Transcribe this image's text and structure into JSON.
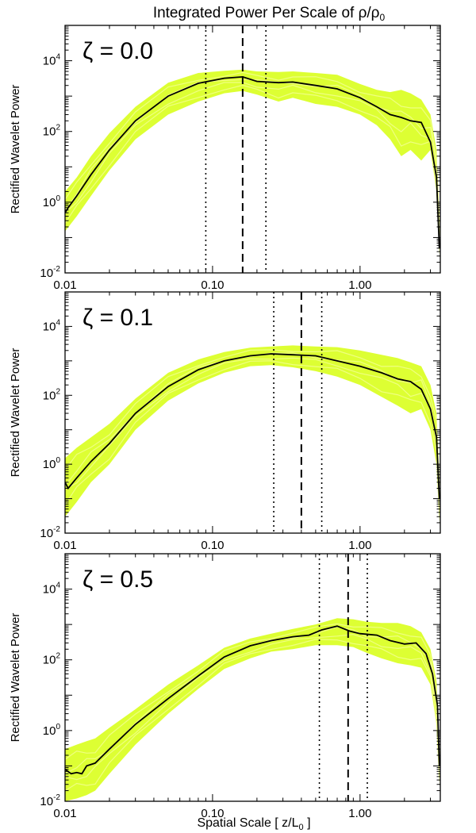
{
  "title_parts": {
    "main": "Integrated Power Per Scale of ",
    "rho": "ρ",
    "slash": "/",
    "rho0": "ρ",
    "sub0": "0"
  },
  "xlabel_parts": {
    "main": "Spatial Scale   [ z/L",
    "sub": "0",
    "end": " ]"
  },
  "ylabel": "Rectified Wavelet Power",
  "colors": {
    "envelope": "#ddff33",
    "mean": "#000000",
    "axis": "#000000"
  },
  "chart_data": [
    {
      "type": "line",
      "annotation": "ζ = 0.0",
      "xscale": "log",
      "yscale": "log",
      "xlim": [
        0.01,
        3.5
      ],
      "ylim": [
        0.01,
        100000
      ],
      "xticks": [
        {
          "v": 0.01,
          "label": "0.01"
        },
        {
          "v": 0.1,
          "label": "0.10"
        },
        {
          "v": 1.0,
          "label": "1.00"
        }
      ],
      "yticks": [
        {
          "v": 0.01,
          "base": "10",
          "exp": "-2"
        },
        {
          "v": 1,
          "base": "10",
          "exp": "0"
        },
        {
          "v": 100,
          "base": "10",
          "exp": "2"
        },
        {
          "v": 10000,
          "base": "10",
          "exp": "4"
        }
      ],
      "vlines": [
        {
          "x": 0.09,
          "style": "dotted"
        },
        {
          "x": 0.16,
          "style": "dashed"
        },
        {
          "x": 0.23,
          "style": "dotted"
        }
      ],
      "mean": {
        "x": [
          0.01,
          0.0105,
          0.012,
          0.015,
          0.02,
          0.03,
          0.05,
          0.08,
          0.12,
          0.16,
          0.2,
          0.28,
          0.35,
          0.5,
          0.7,
          1.0,
          1.3,
          1.6,
          1.9,
          2.2,
          2.6,
          3.0,
          3.3,
          3.45
        ],
        "y": [
          0.5,
          0.7,
          1.5,
          6,
          30,
          200,
          1000,
          2300,
          3200,
          3500,
          2600,
          2400,
          2500,
          2000,
          1600,
          900,
          500,
          300,
          250,
          200,
          180,
          50,
          5,
          0.05
        ]
      },
      "envelope": {
        "x": [
          0.01,
          0.012,
          0.015,
          0.02,
          0.03,
          0.05,
          0.08,
          0.12,
          0.16,
          0.2,
          0.28,
          0.35,
          0.5,
          0.7,
          1.0,
          1.3,
          1.6,
          1.9,
          2.2,
          2.6,
          3.0,
          3.3,
          3.45
        ],
        "lower": [
          0.15,
          0.4,
          1.5,
          8,
          60,
          300,
          700,
          1200,
          1400,
          1100,
          700,
          900,
          600,
          500,
          300,
          150,
          60,
          20,
          30,
          15,
          30,
          2,
          0.03
        ],
        "upper": [
          2,
          5,
          20,
          90,
          500,
          2400,
          4500,
          5200,
          5600,
          5000,
          4800,
          5000,
          4500,
          4000,
          2200,
          1500,
          1300,
          1500,
          1200,
          800,
          300,
          30,
          0.5
        ]
      }
    },
    {
      "type": "line",
      "annotation": "ζ = 0.1",
      "xscale": "log",
      "yscale": "log",
      "xlim": [
        0.01,
        3.5
      ],
      "ylim": [
        0.01,
        100000
      ],
      "xticks": [
        {
          "v": 0.01,
          "label": "0.01"
        },
        {
          "v": 0.1,
          "label": "0.10"
        },
        {
          "v": 1.0,
          "label": "1.00"
        }
      ],
      "yticks": [
        {
          "v": 0.01,
          "base": "10",
          "exp": "-2"
        },
        {
          "v": 1,
          "base": "10",
          "exp": "0"
        },
        {
          "v": 100,
          "base": "10",
          "exp": "2"
        },
        {
          "v": 10000,
          "base": "10",
          "exp": "4"
        }
      ],
      "vlines": [
        {
          "x": 0.26,
          "style": "dotted"
        },
        {
          "x": 0.4,
          "style": "dashed"
        },
        {
          "x": 0.55,
          "style": "dotted"
        }
      ],
      "mean": {
        "x": [
          0.01,
          0.0105,
          0.012,
          0.015,
          0.02,
          0.03,
          0.05,
          0.08,
          0.12,
          0.18,
          0.25,
          0.35,
          0.5,
          0.7,
          1.0,
          1.4,
          1.8,
          2.2,
          2.6,
          3.0,
          3.3,
          3.45
        ],
        "y": [
          0.3,
          0.2,
          0.4,
          1.2,
          4,
          30,
          180,
          550,
          1000,
          1400,
          1600,
          1500,
          1400,
          1000,
          700,
          450,
          300,
          250,
          150,
          40,
          6,
          0.1
        ]
      },
      "envelope": {
        "x": [
          0.01,
          0.012,
          0.015,
          0.02,
          0.03,
          0.05,
          0.08,
          0.12,
          0.18,
          0.25,
          0.35,
          0.5,
          0.7,
          1.0,
          1.4,
          1.8,
          2.2,
          2.6,
          3.0,
          3.3,
          3.45
        ],
        "lower": [
          0.03,
          0.08,
          0.3,
          1,
          10,
          70,
          220,
          450,
          700,
          750,
          650,
          500,
          350,
          200,
          90,
          50,
          30,
          40,
          10,
          1,
          0.02
        ],
        "upper": [
          1.5,
          3,
          6,
          15,
          80,
          450,
          1100,
          1800,
          2400,
          2600,
          2800,
          2600,
          2500,
          2000,
          1500,
          1200,
          900,
          700,
          200,
          30,
          0.4
        ]
      }
    },
    {
      "type": "line",
      "annotation": "ζ = 0.5",
      "xscale": "log",
      "yscale": "log",
      "xlim": [
        0.01,
        3.5
      ],
      "ylim": [
        0.01,
        100000
      ],
      "xticks": [
        {
          "v": 0.01,
          "label": "0.01"
        },
        {
          "v": 0.1,
          "label": "0.10"
        },
        {
          "v": 1.0,
          "label": "1.00"
        }
      ],
      "yticks": [
        {
          "v": 0.01,
          "base": "10",
          "exp": "-2"
        },
        {
          "v": 1,
          "base": "10",
          "exp": "0"
        },
        {
          "v": 100,
          "base": "10",
          "exp": "2"
        },
        {
          "v": 10000,
          "base": "10",
          "exp": "4"
        }
      ],
      "vlines": [
        {
          "x": 0.53,
          "style": "dotted"
        },
        {
          "x": 0.83,
          "style": "dashed"
        },
        {
          "x": 1.12,
          "style": "dotted"
        }
      ],
      "mean": {
        "x": [
          0.01,
          0.011,
          0.012,
          0.013,
          0.014,
          0.016,
          0.02,
          0.03,
          0.05,
          0.08,
          0.12,
          0.18,
          0.25,
          0.35,
          0.45,
          0.55,
          0.7,
          0.85,
          1.0,
          1.3,
          1.6,
          2.0,
          2.4,
          2.8,
          3.1,
          3.35,
          3.45
        ],
        "y": [
          0.08,
          0.06,
          0.065,
          0.06,
          0.1,
          0.12,
          0.3,
          1.5,
          8,
          35,
          120,
          250,
          350,
          450,
          500,
          700,
          900,
          650,
          550,
          500,
          350,
          280,
          300,
          150,
          40,
          5,
          0.1
        ]
      },
      "envelope": {
        "x": [
          0.01,
          0.012,
          0.014,
          0.016,
          0.02,
          0.03,
          0.05,
          0.08,
          0.12,
          0.18,
          0.25,
          0.35,
          0.5,
          0.7,
          0.9,
          1.1,
          1.4,
          1.8,
          2.2,
          2.6,
          3.0,
          3.3,
          3.45
        ],
        "lower": [
          0.01,
          0.012,
          0.015,
          0.02,
          0.06,
          0.4,
          3,
          15,
          55,
          110,
          170,
          200,
          260,
          260,
          230,
          160,
          110,
          80,
          70,
          60,
          20,
          1.5,
          0.03
        ],
        "upper": [
          0.3,
          0.4,
          0.5,
          0.6,
          1.2,
          4,
          20,
          70,
          220,
          400,
          550,
          750,
          1000,
          1500,
          1400,
          1200,
          1100,
          1100,
          900,
          600,
          200,
          25,
          0.4
        ]
      }
    }
  ]
}
